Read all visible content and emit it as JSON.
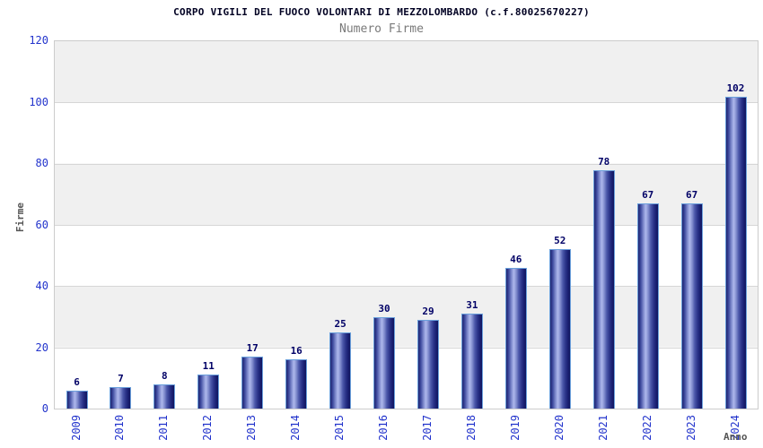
{
  "chart_data": {
    "type": "bar",
    "title": "CORPO VIGILI DEL FUOCO VOLONTARI DI MEZZOLOMBARDO (c.f.80025670227)",
    "subtitle": "Numero Firme",
    "xlabel": "Anno",
    "ylabel": "Firme",
    "categories": [
      "2009",
      "2010",
      "2011",
      "2012",
      "2013",
      "2014",
      "2015",
      "2016",
      "2017",
      "2018",
      "2019",
      "2020",
      "2021",
      "2022",
      "2023",
      "2024"
    ],
    "values": [
      6,
      7,
      8,
      11,
      17,
      16,
      25,
      30,
      29,
      31,
      46,
      52,
      78,
      67,
      67,
      102
    ],
    "ylim": [
      0,
      120
    ],
    "yticks": [
      0,
      20,
      40,
      60,
      80,
      100,
      120
    ],
    "grid": "alternating horizontal bands with light gridlines every 20",
    "legend": "none",
    "colors": {
      "bar_dark": "#1f2670",
      "bar_highlight": "#aeb8ec",
      "bar_border": "#6ba0dc",
      "value_label": "#000066",
      "axis_tick_label": "#2233cc",
      "axis_title": "#555555",
      "chart_title": "#000022",
      "chart_subtitle": "#7a7a7a",
      "band_gray": "#f0f0f0",
      "band_white": "#ffffff",
      "plot_border": "#cccccc"
    }
  }
}
